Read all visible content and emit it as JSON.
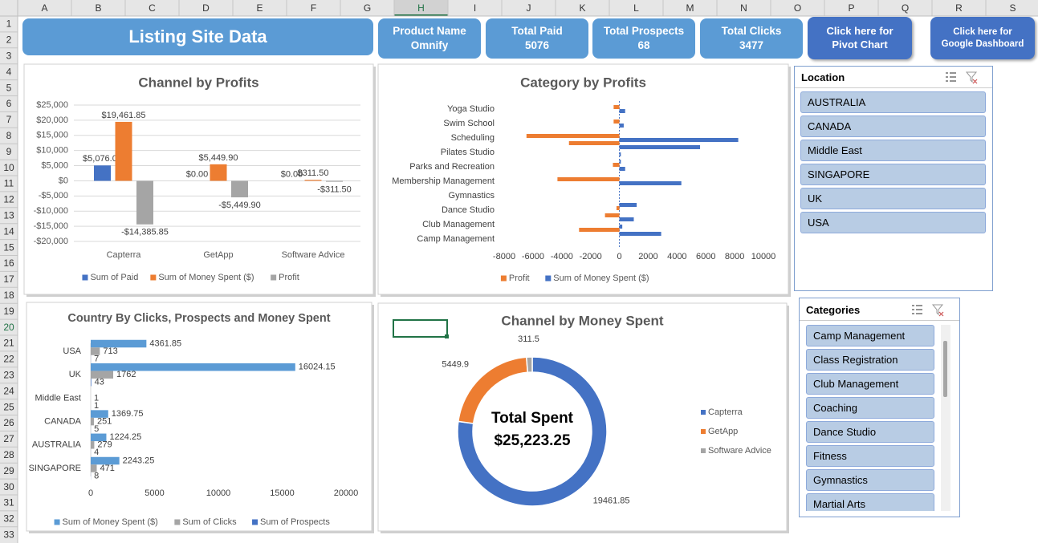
{
  "columns": [
    "A",
    "B",
    "C",
    "D",
    "E",
    "F",
    "G",
    "H",
    "I",
    "J",
    "K",
    "L",
    "M",
    "N",
    "O",
    "P",
    "Q",
    "R",
    "S"
  ],
  "rows": [
    1,
    2,
    3,
    4,
    5,
    6,
    7,
    8,
    9,
    10,
    11,
    12,
    13,
    14,
    15,
    16,
    17,
    18,
    19,
    20,
    21,
    22,
    23,
    24,
    25,
    26,
    27,
    28,
    29,
    30,
    31,
    32,
    33
  ],
  "header": {
    "title": "Listing Site Data",
    "kpis": [
      {
        "label": "Product Name",
        "value": "Omnify"
      },
      {
        "label": "Total Paid",
        "value": 5076
      },
      {
        "label": "Total Prospects",
        "value": 68
      },
      {
        "label": "Total Clicks",
        "value": 3477
      }
    ],
    "buttons": [
      "Click here for Pivot Chart",
      "Click here for Google Dashboard"
    ]
  },
  "slicers": [
    {
      "title": "Location",
      "items": [
        "AUSTRALIA",
        "CANADA",
        "Middle East",
        "SINGAPORE",
        "UK",
        "USA"
      ]
    },
    {
      "title": "Categories",
      "items": [
        "Camp Management",
        "Class Registration",
        "Club Management",
        "Coaching",
        "Dance Studio",
        "Fitness",
        "Gymnastics",
        "Martial Arts"
      ]
    }
  ],
  "chart_data": [
    {
      "type": "bar",
      "title": "Channel by Profits",
      "categories": [
        "Capterra",
        "GetApp",
        "Software Advice"
      ],
      "series": [
        {
          "name": "Sum of Paid",
          "color": "#4472c4",
          "values": [
            5076,
            0,
            0
          ],
          "value_labels": [
            "$5,076.00",
            "$0.00",
            "$0.00"
          ]
        },
        {
          "name": "Sum of Money Spent ($)",
          "color": "#ed7d31",
          "values": [
            19461.85,
            5449.9,
            311.5
          ],
          "value_labels": [
            "$19,461.85",
            "$5,449.90",
            "$311.50"
          ]
        },
        {
          "name": "Profit",
          "color": "#a5a5a5",
          "values": [
            -14385.85,
            -5449.9,
            -311.5
          ],
          "value_labels": [
            "-$14,385.85",
            "-$5,449.90",
            "-$311.50"
          ]
        }
      ],
      "ylim": [
        -20000,
        25000
      ],
      "yticks": [
        {
          "value": -20000,
          "label": "-$20,000"
        },
        {
          "value": -15000,
          "label": "-$15,000"
        },
        {
          "value": -10000,
          "label": "-$10,000"
        },
        {
          "value": -5000,
          "label": "-$5,000"
        },
        {
          "value": 0,
          "label": "$0"
        },
        {
          "value": 5000,
          "label": "$5,000"
        },
        {
          "value": 10000,
          "label": "$10,000"
        },
        {
          "value": 15000,
          "label": "$15,000"
        },
        {
          "value": 20000,
          "label": "$20,000"
        },
        {
          "value": 25000,
          "label": "$25,000"
        }
      ],
      "grid": true,
      "data_labels": true,
      "legend": "bottom"
    },
    {
      "type": "hbar",
      "title": "Category by Profits",
      "categories": [
        "Camp Management",
        null,
        "Club Management",
        null,
        "Dance Studio",
        null,
        "Gymnastics",
        null,
        "Membership Management",
        null,
        "Parks and Recreation",
        null,
        "Pilates Studio",
        null,
        "Scheduling",
        null,
        "Swim School",
        null,
        "Yoga Studio"
      ],
      "series": [
        {
          "name": "Profit",
          "color": "#ed7d31",
          "values": [
            0,
            -2800,
            0,
            -1000,
            -200,
            0,
            0,
            0,
            -4300,
            0,
            -450,
            0,
            0,
            -3500,
            -6450,
            0,
            -400,
            0,
            -400
          ]
        },
        {
          "name": "Sum of Money Spent ($)",
          "color": "#4472c4",
          "values": [
            0,
            2900,
            200,
            1000,
            0,
            1200,
            0,
            0,
            4300,
            0,
            400,
            100,
            100,
            5600,
            8250,
            0,
            300,
            0,
            400
          ]
        }
      ],
      "xlim": [
        -8000,
        10000
      ],
      "xticks": [
        -8000,
        -6000,
        -4000,
        -2000,
        0,
        2000,
        4000,
        6000,
        8000,
        10000
      ],
      "legend": "bottom"
    },
    {
      "type": "hbar",
      "title": "Country By Clicks, Prospects and Money Spent",
      "categories": [
        "SINGAPORE",
        "AUSTRALIA",
        "CANADA",
        "Middle East",
        "UK",
        "USA"
      ],
      "series": [
        {
          "name": "Sum of Money Spent ($)",
          "color": "#5b9bd5",
          "values": [
            2243.25,
            1224.25,
            1369.75,
            null,
            16024.15,
            4361.85
          ]
        },
        {
          "name": "Sum of Clicks",
          "color": "#a5a5a5",
          "values": [
            471,
            279,
            251,
            1,
            1762,
            713
          ]
        },
        {
          "name": "Sum of Prospects",
          "color": "#4472c4",
          "values": [
            8,
            4,
            5,
            1,
            43,
            7
          ]
        }
      ],
      "xlim": [
        0,
        20000
      ],
      "xticks": [
        0,
        5000,
        10000,
        15000,
        20000
      ],
      "data_labels": true,
      "legend": "bottom"
    },
    {
      "type": "donut",
      "title": "Channel by Money Spent",
      "categories": [
        "Capterra",
        "GetApp",
        "Software Advice"
      ],
      "colors": [
        "#4472c4",
        "#ed7d31",
        "#a5a5a5"
      ],
      "values": [
        19461.85,
        5449.9,
        311.5
      ],
      "center_text": [
        "Total Spent",
        "$25,223.25"
      ],
      "legend": "right"
    }
  ]
}
